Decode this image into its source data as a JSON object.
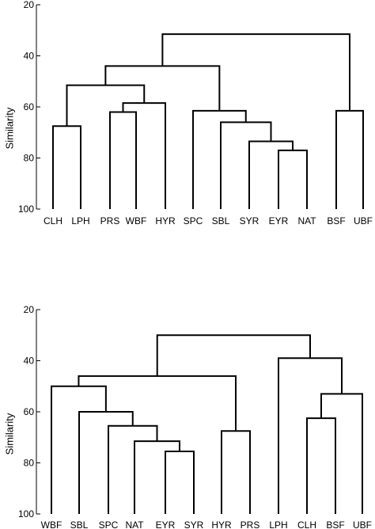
{
  "chart_data": [
    {
      "type": "dendrogram",
      "ylabel": "Similarity",
      "ylim": [
        20,
        100
      ],
      "yticks": [
        "20",
        "40",
        "60",
        "80",
        "100"
      ],
      "leaves": [
        "CLH",
        "LPH",
        "PRS",
        "WBF",
        "HYR",
        "SPC",
        "SBL",
        "SYR",
        "EYR",
        "NAT",
        "BSF",
        "UBF"
      ],
      "merges": [
        {
          "a": "EYR",
          "b": "NAT",
          "similarity": 77
        },
        {
          "a": "SYR",
          "b": "EYR+NAT",
          "similarity": 73.5
        },
        {
          "a": "SBL",
          "b": "SYR+EYR+NAT",
          "similarity": 66
        },
        {
          "a": "SPC",
          "b": "SBL+SYR+EYR+NAT",
          "similarity": 61.5
        },
        {
          "a": "PRS",
          "b": "WBF",
          "similarity": 62
        },
        {
          "a": "PRS+WBF",
          "b": "HYR",
          "similarity": 58.5
        },
        {
          "a": "CLH",
          "b": "LPH",
          "similarity": 67.5
        },
        {
          "a": "CLH+LPH",
          "b": "PRS+WBF+HYR",
          "similarity": 51.5
        },
        {
          "a": "CLH..HYR",
          "b": "SPC..NAT",
          "similarity": 44
        },
        {
          "a": "BSF",
          "b": "UBF",
          "similarity": 61.5
        },
        {
          "a": "CLH..NAT",
          "b": "BSF+UBF",
          "similarity": 31.5
        }
      ]
    },
    {
      "type": "dendrogram",
      "ylabel": "Similarity",
      "ylim": [
        20,
        100
      ],
      "yticks": [
        "20",
        "40",
        "60",
        "80",
        "100"
      ],
      "leaves": [
        "WBF",
        "SBL",
        "SPC",
        "NAT",
        "EYR",
        "SYR",
        "HYR",
        "PRS",
        "LPH",
        "CLH",
        "BSF",
        "UBF"
      ],
      "merges": [
        {
          "a": "EYR",
          "b": "SYR",
          "similarity": 75.5
        },
        {
          "a": "NAT",
          "b": "EYR+SYR",
          "similarity": 71.5
        },
        {
          "a": "SPC",
          "b": "NAT+EYR+SYR",
          "similarity": 65.5
        },
        {
          "a": "SBL",
          "b": "SPC+NAT+EYR+SYR",
          "similarity": 60
        },
        {
          "a": "WBF",
          "b": "SBL..SYR",
          "similarity": 50
        },
        {
          "a": "HYR",
          "b": "PRS",
          "similarity": 67.5
        },
        {
          "a": "WBF..SYR",
          "b": "HYR+PRS",
          "similarity": 46
        },
        {
          "a": "CLH",
          "b": "BSF",
          "similarity": 62.5
        },
        {
          "a": "CLH+BSF",
          "b": "UBF",
          "similarity": 53
        },
        {
          "a": "LPH",
          "b": "CLH+BSF+UBF",
          "similarity": 39
        },
        {
          "a": "WBF..PRS",
          "b": "LPH..UBF",
          "similarity": 30
        }
      ]
    }
  ]
}
